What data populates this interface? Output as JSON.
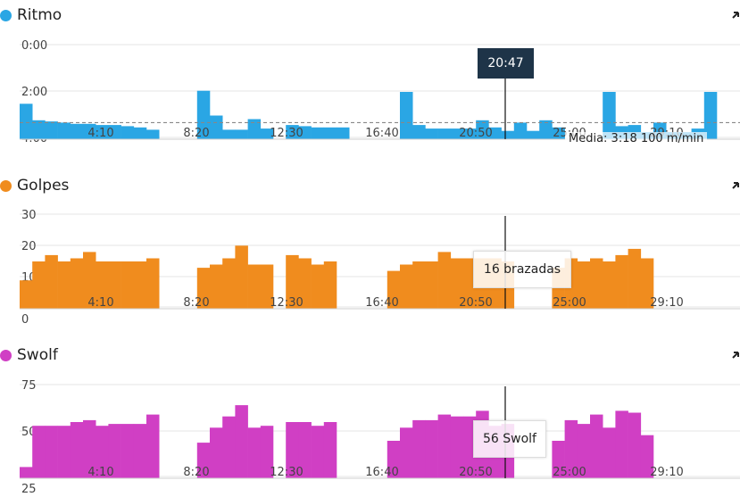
{
  "panels": [
    {
      "title": "Ritmo",
      "color": "#2aa6e4"
    },
    {
      "title": "Golpes",
      "color": "#f08c1e"
    },
    {
      "title": "Swolf",
      "color": "#d03fc4"
    }
  ],
  "tooltip_time": "20:47",
  "tooltip_strokes": "16 brazadas",
  "tooltip_swolf": "56 Swolf",
  "average_label": "Media: 3:18 100 m/min",
  "chart_data": [
    {
      "type": "bar",
      "title": "Ritmo",
      "x_ticks": [
        "4:10",
        "8:20",
        "12:30",
        "16:40",
        "20:50",
        "25:00",
        "29:10"
      ],
      "y_ticks": [
        "0:00",
        "2:00",
        "4:00"
      ],
      "y_inverted": true,
      "average": "3:18",
      "series": [
        {
          "values": [
            2.5,
            3.2,
            3.25,
            3.3,
            3.35,
            3.35,
            3.4,
            3.4,
            3.45,
            3.5,
            3.6,
            null,
            null,
            null,
            1.95,
            3.0,
            3.6,
            3.6,
            3.15,
            3.55,
            null,
            3.4,
            3.45,
            3.5,
            3.5,
            3.5,
            null,
            null,
            null,
            null,
            2.0,
            3.4,
            3.55,
            3.55,
            3.55,
            3.55,
            3.2,
            3.5,
            3.65,
            3.3,
            3.65,
            3.2,
            3.5,
            null,
            null,
            null,
            2.0,
            3.45,
            3.4,
            3.7,
            3.3,
            3.7,
            3.7,
            3.55,
            2.0
          ]
        }
      ],
      "ylim": [
        "0:00",
        "4:00"
      ]
    },
    {
      "type": "bar",
      "title": "Golpes",
      "x_ticks": [
        "4:10",
        "8:20",
        "12:30",
        "16:40",
        "20:50",
        "25:00",
        "29:10"
      ],
      "y_ticks": [
        0,
        10,
        20,
        30
      ],
      "series": [
        {
          "values": [
            9,
            15,
            17,
            15,
            16,
            18,
            15,
            15,
            15,
            15,
            16,
            null,
            null,
            null,
            13,
            14,
            16,
            20,
            14,
            14,
            null,
            17,
            16,
            14,
            15,
            null,
            null,
            null,
            null,
            12,
            14,
            15,
            15,
            18,
            16,
            16,
            16,
            16,
            15,
            null,
            null,
            null,
            13,
            16,
            15,
            16,
            15,
            17,
            19,
            16
          ]
        }
      ],
      "ylim": [
        0,
        30
      ]
    },
    {
      "type": "bar",
      "title": "Swolf",
      "x_ticks": [
        "4:10",
        "8:20",
        "12:30",
        "16:40",
        "20:50",
        "25:00",
        "29:10"
      ],
      "y_ticks": [
        25,
        50,
        75
      ],
      "series": [
        {
          "values": [
            31,
            53,
            53,
            53,
            55,
            56,
            53,
            54,
            54,
            54,
            59,
            null,
            null,
            null,
            44,
            52,
            58,
            64,
            52,
            53,
            null,
            55,
            55,
            53,
            55,
            null,
            null,
            null,
            null,
            45,
            52,
            56,
            56,
            59,
            58,
            58,
            61,
            53,
            54,
            null,
            null,
            null,
            45,
            56,
            54,
            59,
            52,
            61,
            60,
            48
          ]
        }
      ],
      "ylim": [
        25,
        75
      ]
    }
  ]
}
